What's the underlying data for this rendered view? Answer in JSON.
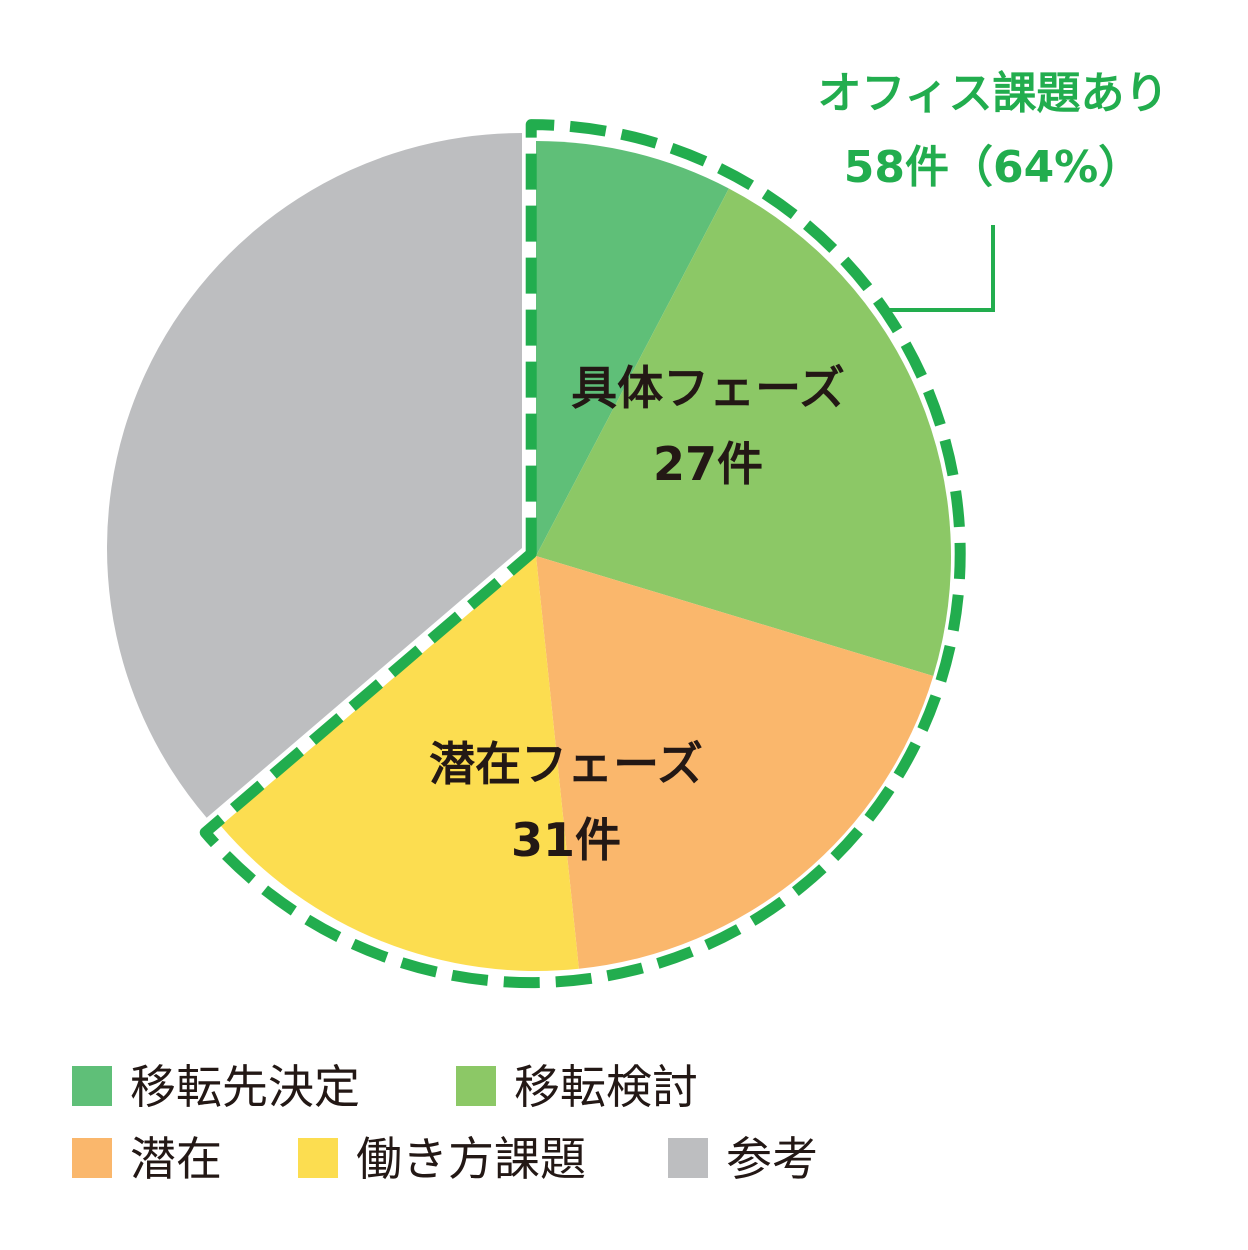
{
  "chart_data": {
    "type": "pie",
    "start_angle_deg": 0,
    "direction": "clockwise",
    "slices": [
      {
        "name": "移転先決定",
        "value": 7,
        "color": "#5fbf78"
      },
      {
        "name": "移転検討",
        "value": 20,
        "color": "#8cc866"
      },
      {
        "name": "潜在",
        "value": 17,
        "color": "#fab76c"
      },
      {
        "name": "働き方課題",
        "value": 14,
        "color": "#fcdd50"
      },
      {
        "name": "参考",
        "value": 33,
        "color": "#bdbec0"
      }
    ],
    "group_labels": [
      {
        "id": "concrete",
        "line1": "具体フェーズ",
        "line2": "27件"
      },
      {
        "id": "latent",
        "line1": "潜在フェーズ",
        "line2": "31件"
      }
    ],
    "highlight": {
      "line1": "オフィス課題あり",
      "line2": "58件（64%）",
      "color": "#22ad4e"
    },
    "legend": {
      "placement": "bottom-left",
      "rows": [
        [
          "移転先決定",
          "移転検討"
        ],
        [
          "潜在",
          "働き方課題",
          "参考"
        ]
      ]
    }
  }
}
